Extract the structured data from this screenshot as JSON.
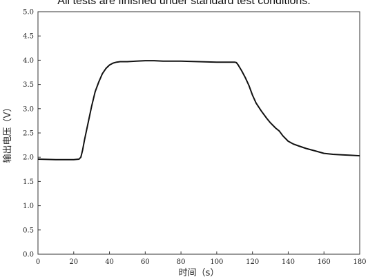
{
  "caption": "All tests are finished under standard test conditions.",
  "chart_data": {
    "type": "line",
    "xlabel": "时间（s）",
    "ylabel": "输出电压（V）",
    "xlim": [
      0,
      180
    ],
    "ylim": [
      0.0,
      5.0
    ],
    "xticks": [
      "0",
      "20",
      "40",
      "60",
      "80",
      "100",
      "120",
      "140",
      "160",
      "180"
    ],
    "yticks": [
      "0.0",
      "0.5",
      "1.0",
      "1.5",
      "2.0",
      "2.5",
      "3.0",
      "3.5",
      "4.0",
      "4.5",
      "5.0"
    ],
    "grid": false,
    "series": [
      {
        "x": [
          0,
          10,
          20,
          23,
          24,
          25,
          26,
          28,
          30,
          32,
          34,
          36,
          38,
          40,
          42,
          44,
          46,
          50,
          55,
          60,
          65,
          70,
          80,
          90,
          100,
          108,
          110,
          111,
          112,
          114,
          116,
          118,
          120,
          122,
          125,
          128,
          130,
          133,
          135,
          137,
          140,
          143,
          146,
          150,
          155,
          160,
          165,
          170,
          175,
          180
        ],
        "y": [
          1.96,
          1.95,
          1.95,
          1.96,
          2.0,
          2.15,
          2.35,
          2.7,
          3.05,
          3.35,
          3.55,
          3.72,
          3.83,
          3.9,
          3.94,
          3.96,
          3.97,
          3.97,
          3.98,
          3.99,
          3.99,
          3.98,
          3.98,
          3.97,
          3.96,
          3.96,
          3.96,
          3.95,
          3.9,
          3.78,
          3.64,
          3.48,
          3.28,
          3.12,
          2.95,
          2.8,
          2.71,
          2.6,
          2.54,
          2.44,
          2.33,
          2.27,
          2.23,
          2.18,
          2.13,
          2.08,
          2.06,
          2.05,
          2.04,
          2.03
        ]
      }
    ]
  }
}
